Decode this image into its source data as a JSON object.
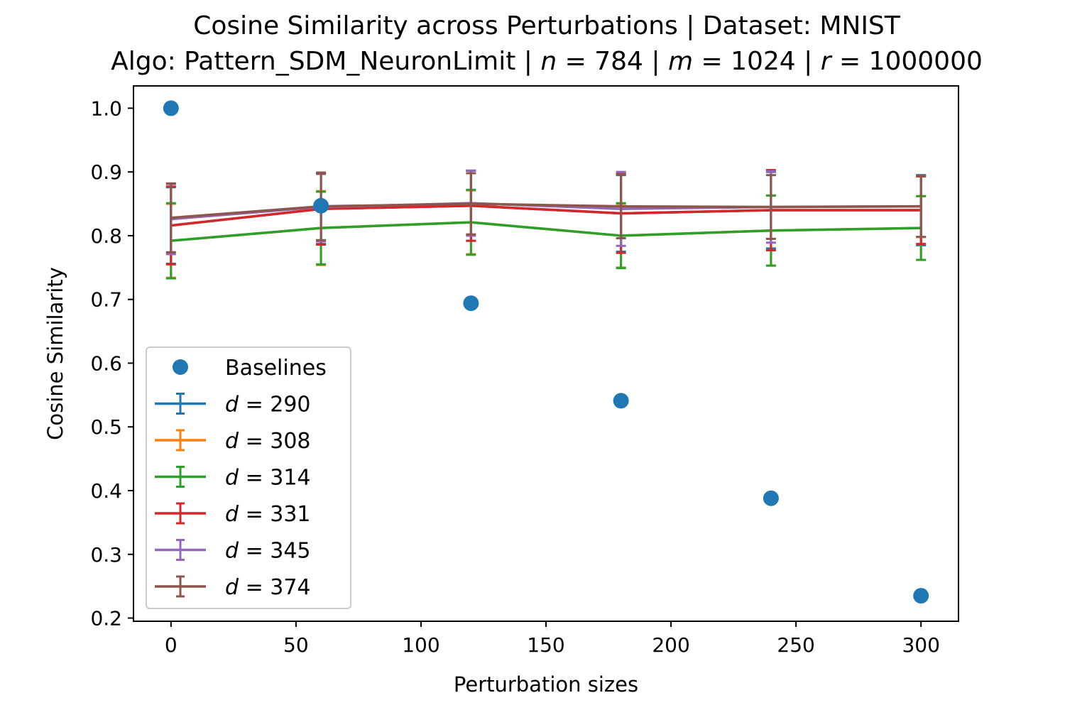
{
  "chart_data": {
    "type": "line",
    "title": "Cosine Similarity across Perturbations | Dataset: MNIST",
    "subtitle": "Algo: Pattern_SDM_NeuronLimit | n = 784 | m = 1024 | r = 1000000",
    "xlabel": "Perturbation sizes",
    "ylabel": "Cosine Similarity",
    "xlim": [
      -15,
      315
    ],
    "ylim": [
      0.195,
      1.035
    ],
    "xticks": [
      0,
      50,
      100,
      150,
      200,
      250,
      300
    ],
    "xtick_labels": [
      "0",
      "50",
      "100",
      "150",
      "200",
      "250",
      "300"
    ],
    "yticks": [
      0.2,
      0.3,
      0.4,
      0.5,
      0.6,
      0.7,
      0.8,
      0.9,
      1.0
    ],
    "ytick_labels": [
      "0.2",
      "0.3",
      "0.4",
      "0.5",
      "0.6",
      "0.7",
      "0.8",
      "0.9",
      "1.0"
    ],
    "grid": false,
    "legend_position": "lower-left",
    "x": [
      0,
      60,
      120,
      180,
      240,
      300
    ],
    "baselines": {
      "name": "Baselines",
      "color": "#1f77b4",
      "values": [
        1.0,
        0.847,
        0.694,
        0.541,
        0.388,
        0.235
      ]
    },
    "series": [
      {
        "name": "d = 290",
        "color": "#1f77b4",
        "values": [
          0.816,
          0.842,
          0.847,
          0.835,
          0.84,
          0.84
        ],
        "err": [
          0.06,
          0.055,
          0.055,
          0.06,
          0.06,
          0.055
        ]
      },
      {
        "name": "d = 308",
        "color": "#ff7f0e",
        "values": [
          0.792,
          0.812,
          0.821,
          0.8,
          0.808,
          0.812
        ],
        "err": [
          0.058,
          0.058,
          0.05,
          0.05,
          0.055,
          0.05
        ]
      },
      {
        "name": "d = 314",
        "color": "#2ca02c",
        "values": [
          0.792,
          0.812,
          0.821,
          0.8,
          0.808,
          0.812
        ],
        "err": [
          0.059,
          0.057,
          0.051,
          0.051,
          0.055,
          0.05
        ]
      },
      {
        "name": "d = 331",
        "color": "#d62728",
        "values": [
          0.816,
          0.842,
          0.847,
          0.835,
          0.84,
          0.84
        ],
        "err": [
          0.061,
          0.056,
          0.055,
          0.062,
          0.063,
          0.053
        ]
      },
      {
        "name": "d = 345",
        "color": "#9467bd",
        "values": [
          0.826,
          0.845,
          0.851,
          0.842,
          0.845,
          0.846
        ],
        "err": [
          0.055,
          0.054,
          0.051,
          0.058,
          0.056,
          0.048
        ]
      },
      {
        "name": "d = 374",
        "color": "#8c564b",
        "values": [
          0.828,
          0.846,
          0.85,
          0.846,
          0.845,
          0.846
        ],
        "err": [
          0.054,
          0.053,
          0.048,
          0.05,
          0.05,
          0.048
        ]
      }
    ]
  }
}
